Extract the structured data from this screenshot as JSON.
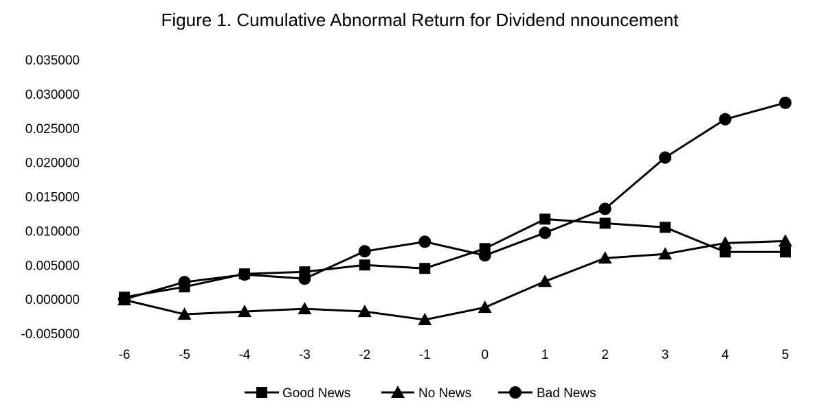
{
  "chart_data": {
    "type": "line",
    "title": "Figure 1.  Cumulative Abnormal Return for Dividend nnouncement",
    "x": [
      -6,
      -5,
      -4,
      -3,
      -2,
      -1,
      0,
      1,
      2,
      3,
      4,
      5
    ],
    "xlabel": "",
    "ylabel": "",
    "ylim": [
      -0.005,
      0.035
    ],
    "yticks": [
      -0.005,
      0.0,
      0.005,
      0.01,
      0.015,
      0.02,
      0.025,
      0.03,
      0.035
    ],
    "ytick_labels": [
      "-0.005000",
      "0.000000",
      "0.005000",
      "0.010000",
      "0.015000",
      "0.020000",
      "0.025000",
      "0.030000",
      "0.035000"
    ],
    "grid": false,
    "legend_position": "bottom",
    "series": [
      {
        "name": "Good News",
        "marker": "square",
        "values": [
          0.0003,
          0.0018,
          0.0037,
          0.004,
          0.005,
          0.0045,
          0.0074,
          0.0117,
          0.0111,
          0.0105,
          0.0069,
          0.0069
        ]
      },
      {
        "name": "No News",
        "marker": "triangle",
        "values": [
          -0.0001,
          -0.0022,
          -0.0018,
          -0.0014,
          -0.0018,
          -0.003,
          -0.0012,
          0.0026,
          0.006,
          0.0066,
          0.0082,
          0.0085
        ]
      },
      {
        "name": "Bad News",
        "marker": "circle",
        "values": [
          0.0,
          0.0025,
          0.0036,
          0.003,
          0.007,
          0.0084,
          0.0064,
          0.0097,
          0.0132,
          0.0207,
          0.0263,
          0.0287
        ]
      }
    ],
    "colors": {
      "line": "#000000"
    }
  }
}
